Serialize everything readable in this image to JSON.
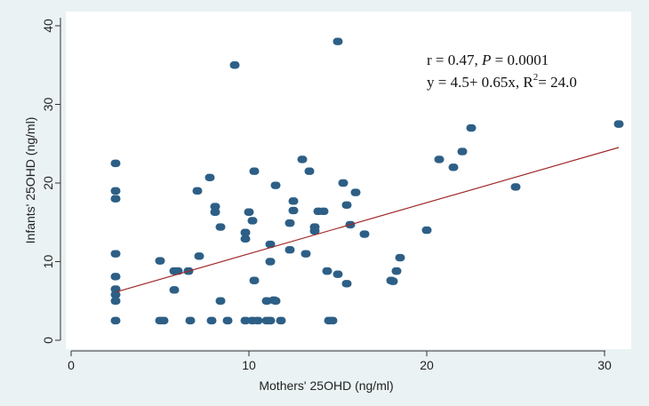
{
  "chart_data": {
    "type": "scatter",
    "title": "",
    "xlabel": "Mothers' 25OHD (ng/ml)",
    "ylabel": "Infants' 25OHD (ng/ml)",
    "xlim": [
      -1,
      31.5
    ],
    "ylim": [
      -1,
      41
    ],
    "xticks": [
      0,
      10,
      20,
      30
    ],
    "yticks": [
      0,
      10,
      20,
      30,
      40
    ],
    "grid": false,
    "legend": "none",
    "colors": {
      "background": "#eaf2f3",
      "plot_area": "#ffffff",
      "points": "#2d5f86",
      "fit_line": "#a02828",
      "axis": "#333333"
    },
    "annotation": {
      "line1_prefix": "r = 0.47, ",
      "line1_p": "P",
      "line1_suffix": " = 0.0001",
      "line2_prefix": "y = 4.5+ 0.65x, R",
      "line2_sup": "2",
      "line2_suffix": "= 24.0"
    },
    "fit_line": {
      "intercept": 4.5,
      "slope": 0.65,
      "x_start": 2.5,
      "x_end": 30.8
    },
    "points": [
      {
        "x": 2.5,
        "y": 22.5
      },
      {
        "x": 2.5,
        "y": 19.0
      },
      {
        "x": 2.5,
        "y": 18.0
      },
      {
        "x": 2.5,
        "y": 11.0
      },
      {
        "x": 2.5,
        "y": 8.1
      },
      {
        "x": 2.5,
        "y": 6.5
      },
      {
        "x": 2.5,
        "y": 5.8
      },
      {
        "x": 2.5,
        "y": 5.0
      },
      {
        "x": 2.5,
        "y": 2.5
      },
      {
        "x": 5.0,
        "y": 10.1
      },
      {
        "x": 5.0,
        "y": 2.5
      },
      {
        "x": 5.2,
        "y": 2.5
      },
      {
        "x": 5.8,
        "y": 8.8
      },
      {
        "x": 5.8,
        "y": 6.4
      },
      {
        "x": 6.0,
        "y": 8.8
      },
      {
        "x": 6.6,
        "y": 8.8
      },
      {
        "x": 6.7,
        "y": 2.5
      },
      {
        "x": 7.1,
        "y": 19.0
      },
      {
        "x": 7.2,
        "y": 10.7
      },
      {
        "x": 7.8,
        "y": 20.7
      },
      {
        "x": 7.9,
        "y": 2.5
      },
      {
        "x": 8.1,
        "y": 17.0
      },
      {
        "x": 8.1,
        "y": 16.3
      },
      {
        "x": 8.4,
        "y": 14.4
      },
      {
        "x": 8.4,
        "y": 5.0
      },
      {
        "x": 8.8,
        "y": 2.5
      },
      {
        "x": 9.2,
        "y": 35.0
      },
      {
        "x": 9.8,
        "y": 13.7
      },
      {
        "x": 9.8,
        "y": 12.9
      },
      {
        "x": 9.8,
        "y": 2.5
      },
      {
        "x": 10.0,
        "y": 16.3
      },
      {
        "x": 10.2,
        "y": 15.2
      },
      {
        "x": 10.2,
        "y": 2.5
      },
      {
        "x": 10.3,
        "y": 21.5
      },
      {
        "x": 10.3,
        "y": 7.6
      },
      {
        "x": 10.5,
        "y": 2.5
      },
      {
        "x": 11.0,
        "y": 2.5
      },
      {
        "x": 11.0,
        "y": 5.0
      },
      {
        "x": 11.2,
        "y": 12.2
      },
      {
        "x": 11.2,
        "y": 10.0
      },
      {
        "x": 11.2,
        "y": 2.5
      },
      {
        "x": 11.4,
        "y": 5.1
      },
      {
        "x": 11.5,
        "y": 19.7
      },
      {
        "x": 11.5,
        "y": 5.0
      },
      {
        "x": 11.8,
        "y": 2.5
      },
      {
        "x": 12.3,
        "y": 14.9
      },
      {
        "x": 12.3,
        "y": 11.5
      },
      {
        "x": 12.5,
        "y": 17.7
      },
      {
        "x": 12.5,
        "y": 16.5
      },
      {
        "x": 13.0,
        "y": 23.0
      },
      {
        "x": 13.2,
        "y": 11.0
      },
      {
        "x": 13.4,
        "y": 21.5
      },
      {
        "x": 13.7,
        "y": 14.4
      },
      {
        "x": 13.7,
        "y": 13.9
      },
      {
        "x": 13.9,
        "y": 16.4
      },
      {
        "x": 14.2,
        "y": 16.4
      },
      {
        "x": 14.4,
        "y": 8.8
      },
      {
        "x": 14.5,
        "y": 2.5
      },
      {
        "x": 14.7,
        "y": 2.5
      },
      {
        "x": 15.0,
        "y": 38.0
      },
      {
        "x": 15.0,
        "y": 8.4
      },
      {
        "x": 15.3,
        "y": 20.0
      },
      {
        "x": 15.5,
        "y": 17.2
      },
      {
        "x": 15.5,
        "y": 7.2
      },
      {
        "x": 15.7,
        "y": 14.7
      },
      {
        "x": 16.0,
        "y": 18.8
      },
      {
        "x": 16.5,
        "y": 13.5
      },
      {
        "x": 18.0,
        "y": 7.6
      },
      {
        "x": 18.1,
        "y": 7.5
      },
      {
        "x": 18.3,
        "y": 8.8
      },
      {
        "x": 18.5,
        "y": 10.5
      },
      {
        "x": 20.0,
        "y": 14.0
      },
      {
        "x": 20.7,
        "y": 23.0
      },
      {
        "x": 21.5,
        "y": 22.0
      },
      {
        "x": 22.0,
        "y": 24.0
      },
      {
        "x": 22.5,
        "y": 27.0
      },
      {
        "x": 25.0,
        "y": 19.5
      },
      {
        "x": 30.8,
        "y": 27.5
      }
    ]
  }
}
